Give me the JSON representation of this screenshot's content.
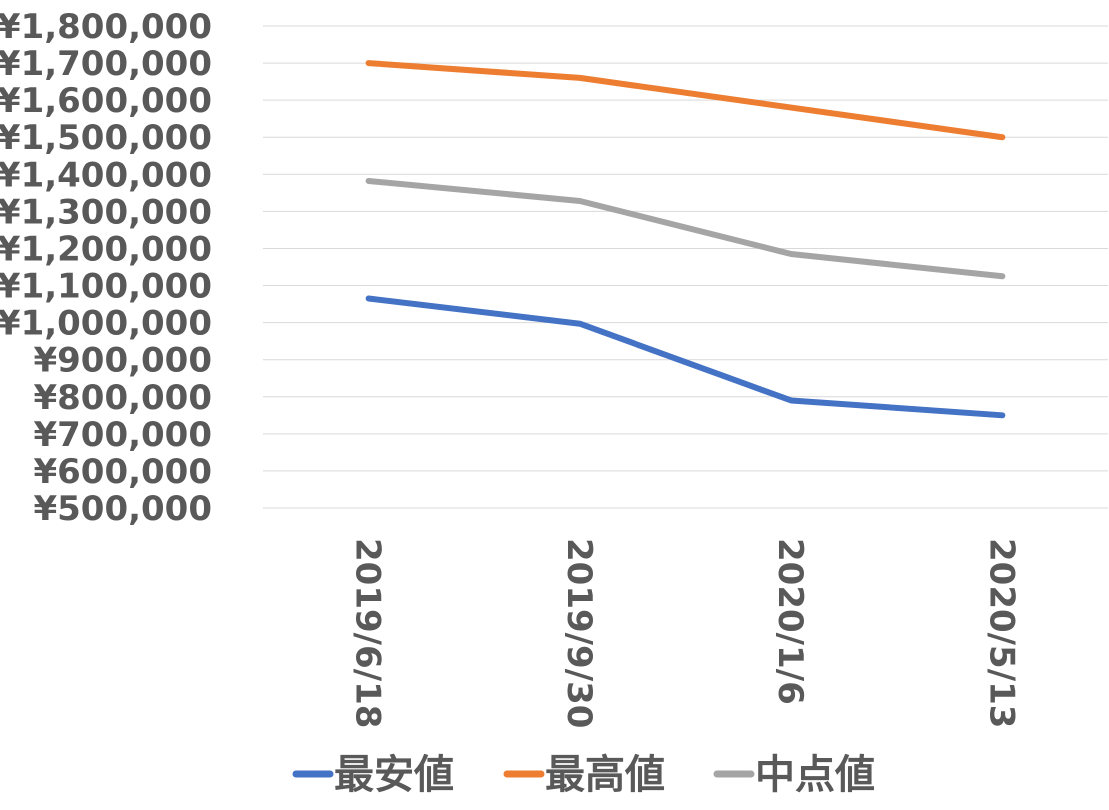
{
  "chart_data": {
    "type": "line",
    "categories": [
      "2019/6/18",
      "2019/9/30",
      "2020/1/6",
      "2020/5/13"
    ],
    "ylim": [
      500000,
      1800000
    ],
    "y_tick_step": 100000,
    "y_tick_labels": [
      "¥500,000",
      "¥600,000",
      "¥700,000",
      "¥800,000",
      "¥900,000",
      "¥1,000,000",
      "¥1,100,000",
      "¥1,200,000",
      "¥1,300,000",
      "¥1,400,000",
      "¥1,500,000",
      "¥1,600,000",
      "¥1,700,000",
      "¥1,800,000"
    ],
    "grid": true,
    "legend_position": "bottom",
    "series": [
      {
        "name": "最安値",
        "color": "#4472C4",
        "values": [
          1065000,
          997000,
          790000,
          750000
        ]
      },
      {
        "name": "最高値",
        "color": "#ED7D31",
        "values": [
          1700000,
          1660000,
          1580000,
          1500000
        ]
      },
      {
        "name": "中点値",
        "color": "#A5A5A5",
        "values": [
          1382000,
          1328000,
          1185000,
          1125000
        ]
      }
    ]
  }
}
